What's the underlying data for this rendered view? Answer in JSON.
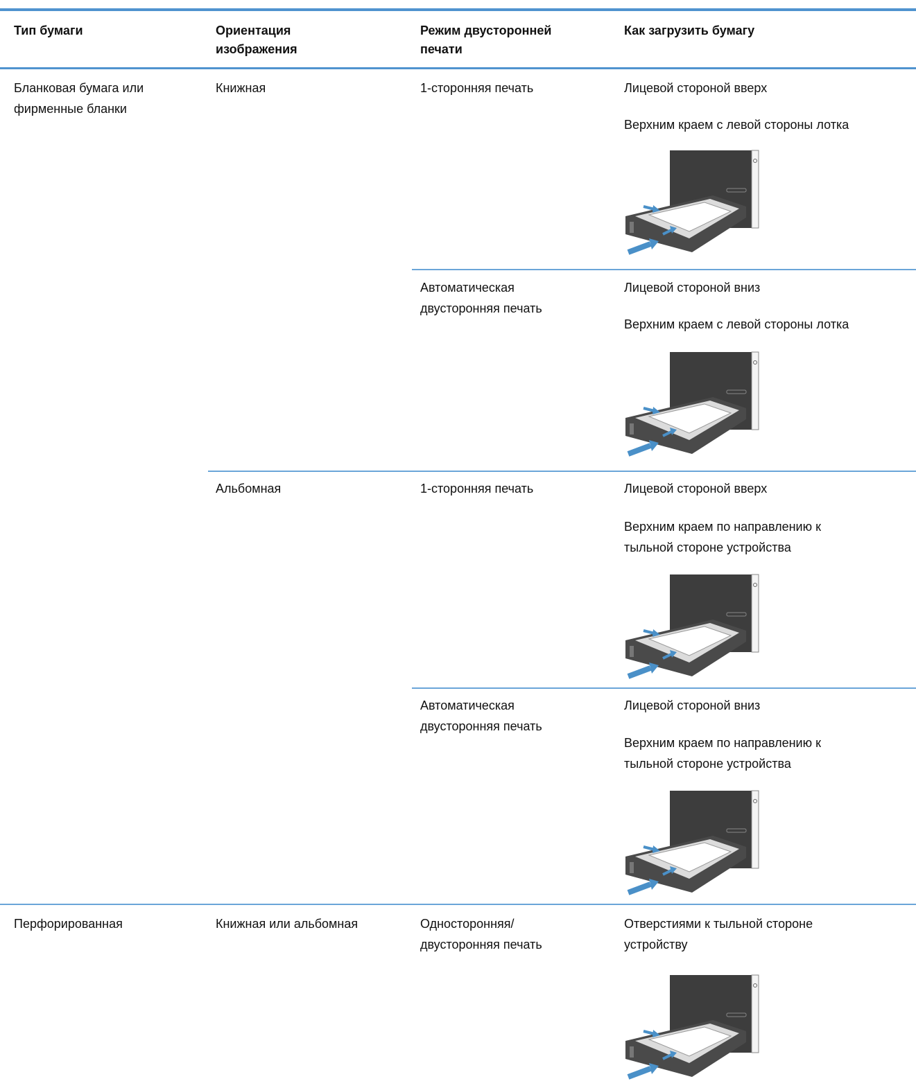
{
  "header": [
    "Тип бумаги",
    "Ориентация\nизображения",
    "Режим двусторонней\nпечати",
    "Как загрузить бумагу"
  ],
  "rows": [
    {
      "paper_type": "Бланковая бумага или\nфирменные бланки",
      "orientation": "Книжная",
      "duplex": "1-сторонняя печать",
      "loading": [
        "Лицевой стороной вверх",
        "Верхним краем с левой стороны лотка"
      ]
    },
    {
      "duplex": "Автоматическая\nдвусторонняя печать",
      "loading": [
        "Лицевой стороной вниз",
        "Верхним краем с левой стороны лотка"
      ]
    },
    {
      "orientation": "Альбомная",
      "duplex": "1-сторонняя печать",
      "loading": [
        "Лицевой стороной вверх",
        "Верхним краем по направлению к\nтыльной стороне устройства"
      ]
    },
    {
      "duplex": "Автоматическая\nдвусторонняя печать",
      "loading": [
        "Лицевой стороной вниз",
        "Верхним краем по направлению к\nтыльной стороне устройства"
      ]
    },
    {
      "paper_type": "Перфорированная",
      "orientation": "Книжная или альбомная",
      "duplex": "Односторонняя/\nдвусторонняя печать",
      "loading": [
        "Отверстиями к тыльной стороне\nустройству"
      ]
    }
  ]
}
